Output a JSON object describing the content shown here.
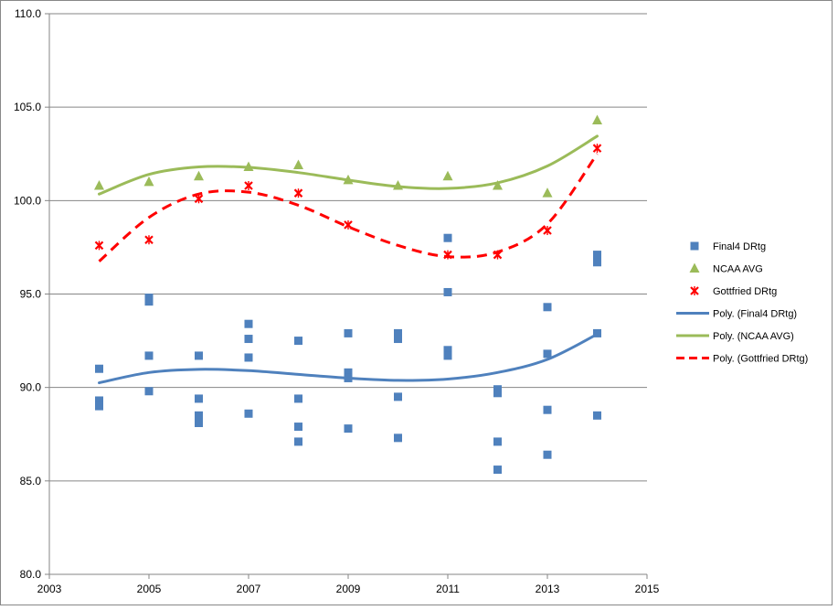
{
  "chart_data": {
    "type": "scatter",
    "title": "",
    "xlabel": "",
    "ylabel": "",
    "xlim": [
      2003,
      2015
    ],
    "ylim": [
      80,
      110
    ],
    "x_ticks": [
      2003,
      2005,
      2007,
      2009,
      2011,
      2013,
      2015
    ],
    "y_ticks": [
      80,
      85,
      90,
      95,
      100,
      105,
      110
    ],
    "x_tick_labels": [
      "2003",
      "2005",
      "2007",
      "2009",
      "2011",
      "2013",
      "2015"
    ],
    "y_tick_labels": [
      "80.0",
      "85.0",
      "90.0",
      "95.0",
      "100.0",
      "105.0",
      "110.0"
    ],
    "grid": "horizontal",
    "legend_position": "right",
    "series": [
      {
        "name": "Final4 DRtg",
        "marker": "square",
        "color": "#4F81BD",
        "points": [
          [
            2004,
            91.0
          ],
          [
            2004,
            89.3
          ],
          [
            2004,
            89.0
          ],
          [
            2005,
            94.8
          ],
          [
            2005,
            94.6
          ],
          [
            2005,
            91.7
          ],
          [
            2005,
            89.8
          ],
          [
            2006,
            91.7
          ],
          [
            2006,
            89.4
          ],
          [
            2006,
            88.5
          ],
          [
            2006,
            88.1
          ],
          [
            2007,
            93.4
          ],
          [
            2007,
            92.6
          ],
          [
            2007,
            91.6
          ],
          [
            2007,
            88.6
          ],
          [
            2008,
            92.5
          ],
          [
            2008,
            89.4
          ],
          [
            2008,
            87.9
          ],
          [
            2008,
            87.1
          ],
          [
            2009,
            92.9
          ],
          [
            2009,
            90.8
          ],
          [
            2009,
            90.5
          ],
          [
            2009,
            87.8
          ],
          [
            2010,
            92.9
          ],
          [
            2010,
            92.6
          ],
          [
            2010,
            89.5
          ],
          [
            2010,
            87.3
          ],
          [
            2011,
            98.0
          ],
          [
            2011,
            95.1
          ],
          [
            2011,
            92.0
          ],
          [
            2011,
            91.7
          ],
          [
            2012,
            89.9
          ],
          [
            2012,
            89.7
          ],
          [
            2012,
            87.1
          ],
          [
            2012,
            85.6
          ],
          [
            2013,
            94.3
          ],
          [
            2013,
            91.8
          ],
          [
            2013,
            88.8
          ],
          [
            2013,
            86.4
          ],
          [
            2014,
            97.1
          ],
          [
            2014,
            96.7
          ],
          [
            2014,
            92.9
          ],
          [
            2014,
            88.5
          ]
        ]
      },
      {
        "name": "NCAA AVG",
        "marker": "triangle",
        "color": "#9BBB59",
        "points": [
          [
            2004,
            100.8
          ],
          [
            2005,
            101.0
          ],
          [
            2006,
            101.3
          ],
          [
            2007,
            101.8
          ],
          [
            2008,
            101.9
          ],
          [
            2009,
            101.1
          ],
          [
            2010,
            100.8
          ],
          [
            2011,
            101.3
          ],
          [
            2012,
            100.8
          ],
          [
            2013,
            100.4
          ],
          [
            2014,
            104.3
          ]
        ]
      },
      {
        "name": "Gottfried DRtg",
        "marker": "x",
        "color": "#FF0000",
        "points": [
          [
            2004,
            97.6
          ],
          [
            2005,
            97.9
          ],
          [
            2006,
            100.1
          ],
          [
            2007,
            100.8
          ],
          [
            2008,
            100.4
          ],
          [
            2009,
            98.7
          ],
          [
            2011,
            97.1
          ],
          [
            2012,
            97.1
          ],
          [
            2013,
            98.4
          ],
          [
            2014,
            102.8
          ]
        ]
      }
    ],
    "trendlines": [
      {
        "name": "Poly. (Final4 DRtg)",
        "color": "#4F81BD",
        "dash": "solid",
        "points": [
          [
            2004,
            90.25
          ],
          [
            2005,
            90.8
          ],
          [
            2006,
            90.97
          ],
          [
            2007,
            90.9
          ],
          [
            2008,
            90.7
          ],
          [
            2009,
            90.5
          ],
          [
            2010,
            90.38
          ],
          [
            2011,
            90.45
          ],
          [
            2012,
            90.8
          ],
          [
            2013,
            91.5
          ],
          [
            2014,
            92.85
          ]
        ]
      },
      {
        "name": "Poly. (NCAA AVG)",
        "color": "#9BBB59",
        "dash": "solid",
        "points": [
          [
            2004,
            100.35
          ],
          [
            2005,
            101.4
          ],
          [
            2006,
            101.8
          ],
          [
            2007,
            101.78
          ],
          [
            2008,
            101.5
          ],
          [
            2009,
            101.1
          ],
          [
            2010,
            100.75
          ],
          [
            2011,
            100.65
          ],
          [
            2012,
            100.95
          ],
          [
            2013,
            101.85
          ],
          [
            2014,
            103.45
          ]
        ]
      },
      {
        "name": "Poly. (Gottfried DRtg)",
        "color": "#FF0000",
        "dash": "dashed",
        "points": [
          [
            2004,
            96.75
          ],
          [
            2005,
            99.1
          ],
          [
            2006,
            100.35
          ],
          [
            2007,
            100.45
          ],
          [
            2008,
            99.75
          ],
          [
            2009,
            98.6
          ],
          [
            2010,
            97.6
          ],
          [
            2011,
            97.0
          ],
          [
            2012,
            97.25
          ],
          [
            2013,
            98.75
          ],
          [
            2014,
            102.5
          ]
        ]
      }
    ]
  }
}
